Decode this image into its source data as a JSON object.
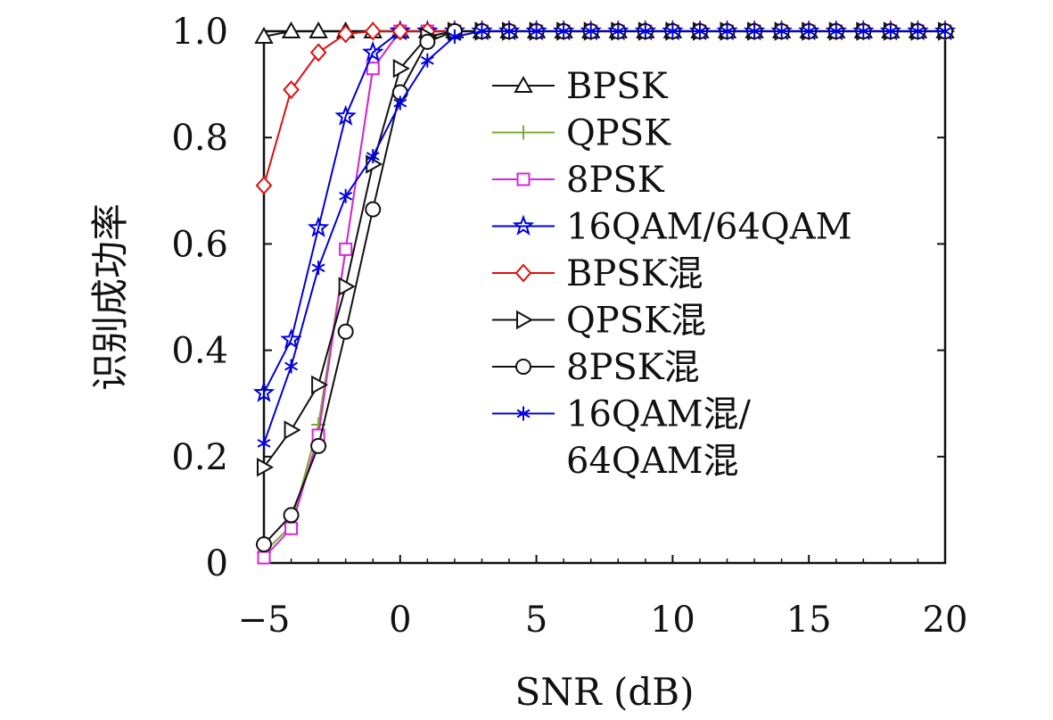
{
  "chart_data": {
    "type": "line",
    "title": "",
    "xlabel": "SNR (dB)",
    "ylabel": "识别成功率",
    "xlim": [
      -5,
      20
    ],
    "ylim": [
      0,
      1.0
    ],
    "xticks": [
      -5,
      0,
      5,
      10,
      15,
      20
    ],
    "xtick_labels": [
      "−5",
      "0",
      "5",
      "10",
      "15",
      "20"
    ],
    "yticks": [
      0,
      0.2,
      0.4,
      0.6,
      0.8,
      1.0
    ],
    "ytick_labels": [
      "0",
      "0.2",
      "0.4",
      "0.6",
      "0.8",
      "1.0"
    ],
    "grid": false,
    "legend_position": "right",
    "x": [
      -5,
      -4,
      -3,
      -2,
      -1,
      0,
      1,
      2,
      3,
      4,
      5,
      6,
      7,
      8,
      9,
      10,
      11,
      12,
      13,
      14,
      15,
      16,
      17,
      18,
      19,
      20
    ],
    "series": [
      {
        "name": "BPSK",
        "color": "#111111",
        "marker": "triangle-up",
        "values": [
          0.99,
          1.0,
          1.0,
          1.0,
          1.0,
          1.0,
          1.0,
          1.0,
          1.0,
          1.0,
          1.0,
          1.0,
          1.0,
          1.0,
          1.0,
          1.0,
          1.0,
          1.0,
          1.0,
          1.0,
          1.0,
          1.0,
          1.0,
          1.0,
          1.0,
          1.0
        ]
      },
      {
        "name": "QPSK",
        "color": "#77ac30",
        "marker": "plus",
        "values": [
          0.02,
          0.07,
          0.26,
          0.59,
          0.93,
          1.0,
          1.0,
          1.0,
          1.0,
          1.0,
          1.0,
          1.0,
          1.0,
          1.0,
          1.0,
          1.0,
          1.0,
          1.0,
          1.0,
          1.0,
          1.0,
          1.0,
          1.0,
          1.0,
          1.0,
          1.0
        ]
      },
      {
        "name": "8PSK",
        "color": "#d926d9",
        "marker": "square",
        "values": [
          0.01,
          0.065,
          0.24,
          0.59,
          0.93,
          1.0,
          1.0,
          1.0,
          1.0,
          1.0,
          1.0,
          1.0,
          1.0,
          1.0,
          1.0,
          1.0,
          1.0,
          1.0,
          1.0,
          1.0,
          1.0,
          1.0,
          1.0,
          1.0,
          1.0,
          1.0
        ]
      },
      {
        "name": "16QAM/64QAM",
        "color": "#0000dd",
        "marker": "star",
        "values": [
          0.32,
          0.42,
          0.63,
          0.84,
          0.96,
          1.0,
          1.0,
          1.0,
          1.0,
          1.0,
          1.0,
          1.0,
          1.0,
          1.0,
          1.0,
          1.0,
          1.0,
          1.0,
          1.0,
          1.0,
          1.0,
          1.0,
          1.0,
          1.0,
          1.0,
          1.0
        ]
      },
      {
        "name": "BPSK混",
        "color": "#dd1111",
        "marker": "diamond",
        "values": [
          0.71,
          0.89,
          0.96,
          0.995,
          1.0,
          1.0,
          1.0,
          1.0,
          1.0,
          1.0,
          1.0,
          1.0,
          1.0,
          1.0,
          1.0,
          1.0,
          1.0,
          1.0,
          1.0,
          1.0,
          1.0,
          1.0,
          1.0,
          1.0,
          1.0,
          1.0
        ]
      },
      {
        "name": "QPSK混",
        "color": "#111111",
        "marker": "triangle-right",
        "values": [
          0.18,
          0.25,
          0.335,
          0.52,
          0.75,
          0.93,
          0.99,
          1.0,
          1.0,
          1.0,
          1.0,
          1.0,
          1.0,
          1.0,
          1.0,
          1.0,
          1.0,
          1.0,
          1.0,
          1.0,
          1.0,
          1.0,
          1.0,
          1.0,
          1.0,
          1.0
        ]
      },
      {
        "name": "8PSK混",
        "color": "#111111",
        "marker": "circle",
        "values": [
          0.035,
          0.09,
          0.22,
          0.435,
          0.665,
          0.885,
          0.98,
          1.0,
          1.0,
          1.0,
          1.0,
          1.0,
          1.0,
          1.0,
          1.0,
          1.0,
          1.0,
          1.0,
          1.0,
          1.0,
          1.0,
          1.0,
          1.0,
          1.0,
          1.0,
          1.0
        ]
      },
      {
        "name": "16QAM混/64QAM混",
        "color": "#0000dd",
        "marker": "asterisk",
        "values": [
          0.225,
          0.37,
          0.555,
          0.69,
          0.765,
          0.865,
          0.945,
          0.99,
          1.0,
          1.0,
          1.0,
          1.0,
          1.0,
          1.0,
          1.0,
          1.0,
          1.0,
          1.0,
          1.0,
          1.0,
          1.0,
          1.0,
          1.0,
          1.0,
          1.0,
          1.0
        ]
      }
    ],
    "legend_labels": [
      "BPSK",
      "QPSK",
      "8PSK",
      "16QAM/64QAM",
      "BPSK混",
      "QPSK混",
      "8PSK混",
      "16QAM混/",
      "64QAM混"
    ]
  }
}
